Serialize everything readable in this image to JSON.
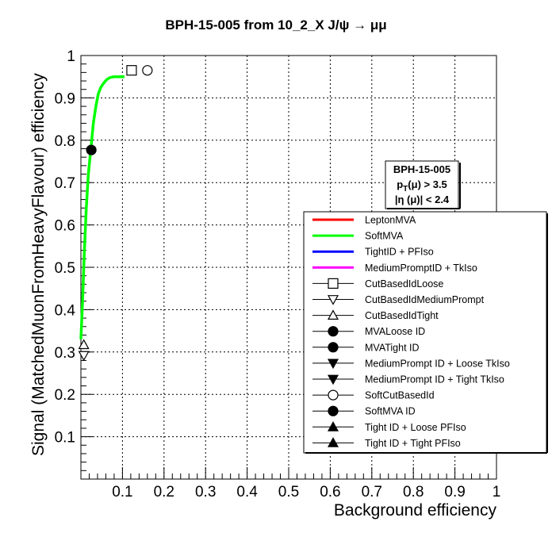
{
  "chart_data": {
    "type": "line",
    "title": "BPH-15-005 from 10_2_X J/ψ → μμ",
    "xlabel": "Background efficiency",
    "ylabel": "Signal (MatchedMuonFromHeavyFlavour) efficiency",
    "xlim": [
      0,
      1
    ],
    "ylim": [
      0,
      1
    ],
    "xticks": [
      "0.1",
      "0.2",
      "0.3",
      "0.4",
      "0.5",
      "0.6",
      "0.7",
      "0.8",
      "0.9",
      "1"
    ],
    "yticks": [
      "0.1",
      "0.2",
      "0.3",
      "0.4",
      "0.5",
      "0.6",
      "0.7",
      "0.8",
      "0.9",
      "1"
    ],
    "grid": true,
    "legend_position": "right",
    "info_box": {
      "line1": "BPH-15-005",
      "line2_main": "p",
      "line2_sub": "T",
      "line2_rest": "(μ) > 3.5",
      "line3": "|η (μ)| < 2.4"
    },
    "series": [
      {
        "name": "LeptonMVA",
        "color": "#ff0000",
        "x": [],
        "y": []
      },
      {
        "name": "SoftMVA",
        "color": "#00ff00",
        "x": [
          0.0,
          0.004,
          0.008,
          0.013,
          0.018,
          0.024,
          0.03,
          0.036,
          0.042,
          0.048,
          0.055,
          0.062,
          0.07,
          0.08,
          0.09,
          0.1,
          0.105
        ],
        "y": [
          0.33,
          0.42,
          0.53,
          0.64,
          0.72,
          0.78,
          0.84,
          0.88,
          0.91,
          0.925,
          0.935,
          0.943,
          0.948,
          0.95,
          0.95,
          0.95,
          0.95
        ]
      },
      {
        "name": "TightID + PFIso",
        "color": "#0000ff",
        "x": [],
        "y": []
      },
      {
        "name": "MediumPromptID + TkIso",
        "color": "#ff00ff",
        "x": [],
        "y": []
      }
    ],
    "markers": [
      {
        "name": "CutBasedIdLoose",
        "shape": "open-square",
        "x": 0.122,
        "y": 0.965
      },
      {
        "name": "CutBasedIdMediumPrompt",
        "shape": "open-triangle-down",
        "x": 0.007,
        "y": 0.292
      },
      {
        "name": "CutBasedIdTight",
        "shape": "open-triangle-up",
        "x": 0.007,
        "y": 0.317
      },
      {
        "name": "MVALoose ID",
        "shape": "filled-circle",
        "x": null,
        "y": null
      },
      {
        "name": "MVATight ID",
        "shape": "filled-circle",
        "x": null,
        "y": null
      },
      {
        "name": "MediumPrompt ID + Loose TkIso",
        "shape": "filled-triangle-down",
        "x": null,
        "y": null
      },
      {
        "name": "MediumPrompt ID + Tight TkIso",
        "shape": "filled-triangle-down",
        "x": null,
        "y": null
      },
      {
        "name": "SoftCutBasedId",
        "shape": "open-circle",
        "x": 0.16,
        "y": 0.965
      },
      {
        "name": "SoftMVA ID",
        "shape": "filled-circle",
        "x": 0.025,
        "y": 0.777
      },
      {
        "name": "Tight ID + Loose PFIso",
        "shape": "filled-triangle-up",
        "x": null,
        "y": null
      },
      {
        "name": "Tight ID + Tight PFIso",
        "shape": "filled-triangle-up",
        "x": null,
        "y": null
      }
    ]
  }
}
